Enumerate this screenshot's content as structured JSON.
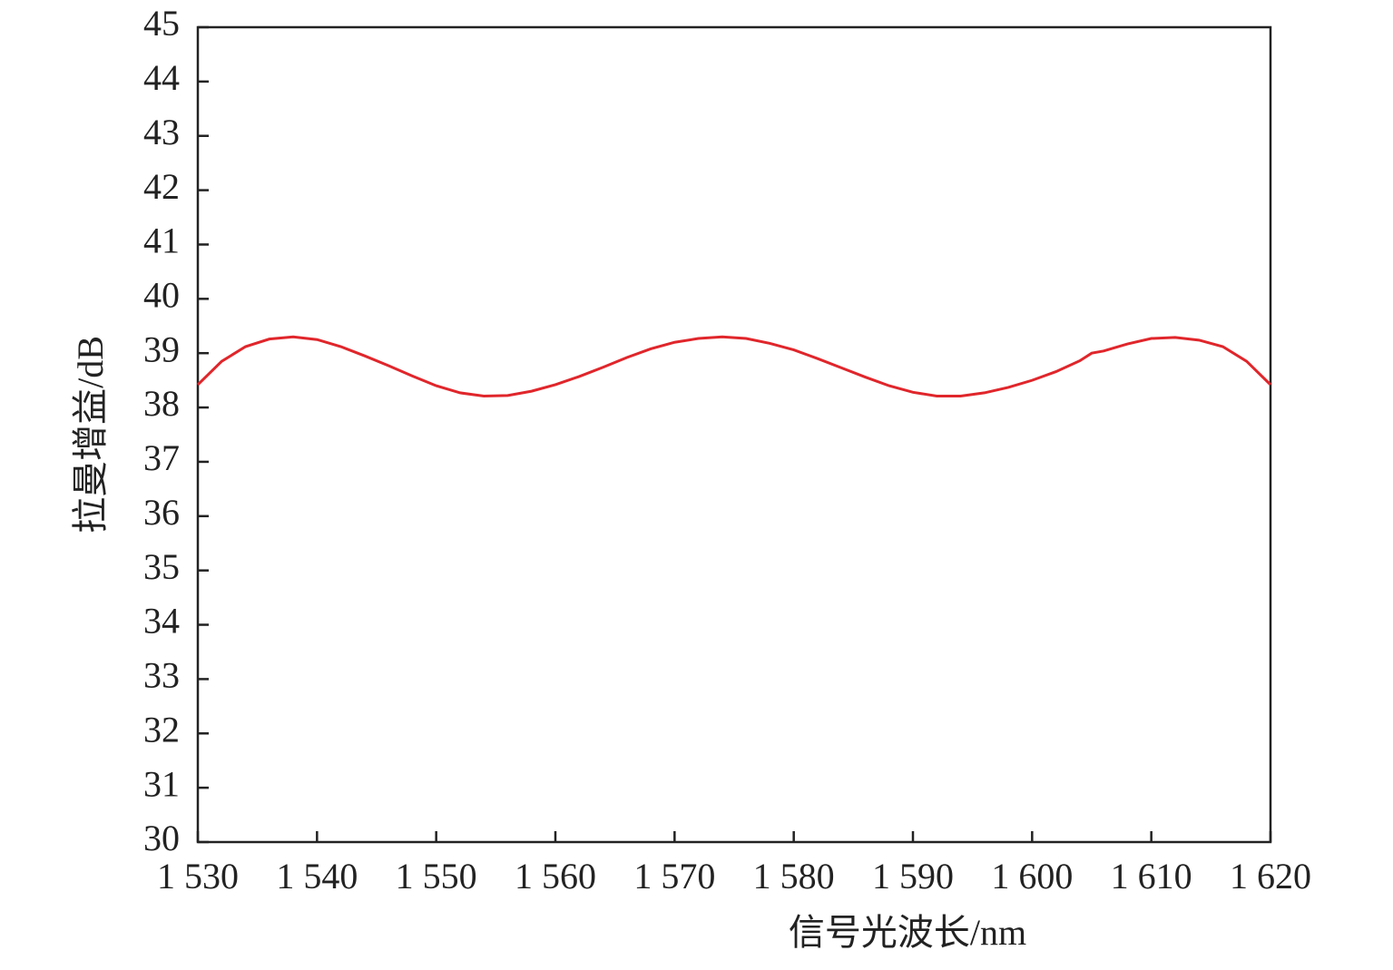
{
  "chart_data": {
    "type": "line",
    "xlabel": "信号光波长/nm",
    "ylabel": "拉曼增益/dB",
    "x": [
      1530,
      1532,
      1534,
      1536,
      1538,
      1540,
      1542,
      1544,
      1546,
      1548,
      1550,
      1552,
      1554,
      1556,
      1558,
      1560,
      1562,
      1564,
      1566,
      1568,
      1570,
      1572,
      1574,
      1576,
      1578,
      1580,
      1582,
      1584,
      1586,
      1588,
      1590,
      1592,
      1594,
      1596,
      1598,
      1600,
      1602,
      1604,
      1605,
      1606,
      1608,
      1610,
      1612,
      1614,
      1616,
      1618,
      1620
    ],
    "series": [
      {
        "color": "#e0262b",
        "values": [
          38.42,
          38.85,
          39.12,
          39.26,
          39.3,
          39.25,
          39.12,
          38.95,
          38.77,
          38.58,
          38.4,
          38.27,
          38.21,
          38.22,
          38.3,
          38.42,
          38.57,
          38.74,
          38.92,
          39.08,
          39.2,
          39.27,
          39.3,
          39.27,
          39.18,
          39.06,
          38.9,
          38.73,
          38.56,
          38.4,
          38.28,
          38.21,
          38.21,
          38.27,
          38.37,
          38.5,
          38.66,
          38.86,
          39.0,
          39.04,
          39.17,
          39.27,
          39.29,
          39.24,
          39.12,
          38.85,
          38.42
        ]
      }
    ],
    "xlim": [
      1530,
      1620
    ],
    "xticks": [
      {
        "value": 1530,
        "label": "1 530"
      },
      {
        "value": 1540,
        "label": "1 540"
      },
      {
        "value": 1550,
        "label": "1 550"
      },
      {
        "value": 1560,
        "label": "1 560"
      },
      {
        "value": 1570,
        "label": "1 570"
      },
      {
        "value": 1580,
        "label": "1 580"
      },
      {
        "value": 1590,
        "label": "1 590"
      },
      {
        "value": 1600,
        "label": "1 600"
      },
      {
        "value": 1610,
        "label": "1 610"
      },
      {
        "value": 1620,
        "label": "1 620"
      }
    ],
    "ylim": [
      30,
      45
    ],
    "yticks": [
      30,
      31,
      32,
      33,
      34,
      35,
      36,
      37,
      38,
      39,
      40,
      41,
      42,
      43,
      44,
      45
    ]
  }
}
